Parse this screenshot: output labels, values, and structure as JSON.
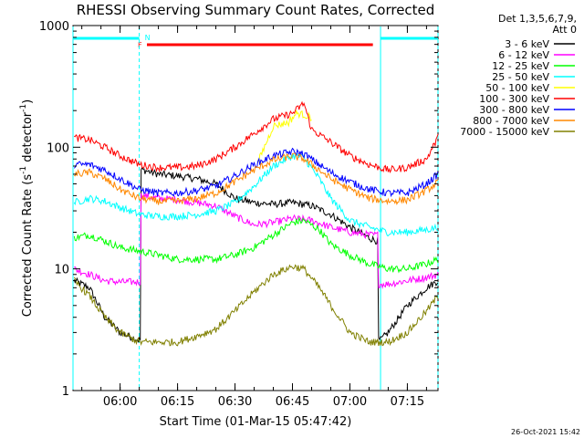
{
  "chart_data": {
    "type": "line",
    "title": "RHESSI Observing Summary Count Rates, Corrected",
    "xlabel": "Start Time (01-Mar-15 05:47:42)",
    "ylabel_main": "Corrected Count Rate (s",
    "ylabel_sup1": "-1",
    "ylabel_mid": " detector",
    "ylabel_sup2": "-1",
    "ylabel_end": ")",
    "timestamp": "26-Oct-2021 15:42",
    "y_scale": "log",
    "ylim": [
      1,
      1000
    ],
    "xlim": [
      "05:47:42",
      "07:23:00"
    ],
    "x_ticks": [
      "06:00",
      "06:15",
      "06:30",
      "06:45",
      "07:00",
      "07:15"
    ],
    "y_ticks": [
      "1",
      "10",
      "100",
      "1000"
    ],
    "legend_header": [
      "Det 1,3,5,6,7,9,",
      "Att 0"
    ],
    "legend_placement": "right",
    "flags": {
      "night_label": "N",
      "flare_label": "F",
      "night_color": "#00ffff",
      "flare_color": "#ff0000",
      "night_spans": [
        [
          "05:47:42",
          "06:05:00"
        ],
        [
          "07:08:00",
          "07:23:00"
        ]
      ],
      "flare_span": [
        "06:07:00",
        "07:06:00"
      ],
      "saa_boundaries": [
        "05:47:42",
        "06:05:00",
        "07:08:00",
        "07:23:00"
      ]
    },
    "series": [
      {
        "name": "3 - 6 keV",
        "color": "#000000",
        "points": [
          [
            "05:48",
            8
          ],
          [
            "05:52",
            7
          ],
          [
            "05:56",
            4
          ],
          [
            "06:00",
            3
          ],
          [
            "06:05",
            2.6
          ],
          [
            "06:06",
            65
          ],
          [
            "06:10",
            60
          ],
          [
            "06:15",
            58
          ],
          [
            "06:20",
            55
          ],
          [
            "06:25",
            50
          ],
          [
            "06:30",
            38
          ],
          [
            "06:35",
            35
          ],
          [
            "06:40",
            34
          ],
          [
            "06:45",
            35
          ],
          [
            "06:50",
            33
          ],
          [
            "06:55",
            28
          ],
          [
            "07:00",
            22
          ],
          [
            "07:05",
            18
          ],
          [
            "07:07",
            17
          ],
          [
            "07:08",
            2.6
          ],
          [
            "07:10",
            3
          ],
          [
            "07:15",
            5
          ],
          [
            "07:20",
            7
          ],
          [
            "07:23",
            8
          ]
        ]
      },
      {
        "name": "6 - 12 keV",
        "color": "#ff00ff",
        "points": [
          [
            "05:48",
            10
          ],
          [
            "05:52",
            9
          ],
          [
            "05:56",
            8
          ],
          [
            "06:00",
            7.8
          ],
          [
            "06:05",
            7.8
          ],
          [
            "06:06",
            40
          ],
          [
            "06:10",
            38
          ],
          [
            "06:15",
            37
          ],
          [
            "06:20",
            35
          ],
          [
            "06:25",
            33
          ],
          [
            "06:30",
            27
          ],
          [
            "06:35",
            23
          ],
          [
            "06:40",
            24
          ],
          [
            "06:45",
            26
          ],
          [
            "06:50",
            25
          ],
          [
            "06:55",
            22
          ],
          [
            "07:00",
            20
          ],
          [
            "07:05",
            19
          ],
          [
            "07:07",
            19
          ],
          [
            "07:08",
            7.5
          ],
          [
            "07:10",
            7.5
          ],
          [
            "07:15",
            8
          ],
          [
            "07:20",
            8.5
          ],
          [
            "07:23",
            9
          ]
        ]
      },
      {
        "name": "12 - 25 keV",
        "color": "#00ff00",
        "points": [
          [
            "05:48",
            18
          ],
          [
            "05:52",
            19
          ],
          [
            "05:56",
            17
          ],
          [
            "06:00",
            15
          ],
          [
            "06:05",
            14
          ],
          [
            "06:10",
            13
          ],
          [
            "06:15",
            12
          ],
          [
            "06:20",
            12
          ],
          [
            "06:25",
            12
          ],
          [
            "06:30",
            13
          ],
          [
            "06:35",
            15
          ],
          [
            "06:40",
            19
          ],
          [
            "06:45",
            24
          ],
          [
            "06:48",
            25
          ],
          [
            "06:52",
            21
          ],
          [
            "06:55",
            16
          ],
          [
            "07:00",
            13
          ],
          [
            "07:05",
            11
          ],
          [
            "07:10",
            10
          ],
          [
            "07:15",
            10
          ],
          [
            "07:20",
            11
          ],
          [
            "07:23",
            12
          ]
        ]
      },
      {
        "name": "25 - 50 keV",
        "color": "#00ffff",
        "points": [
          [
            "05:48",
            35
          ],
          [
            "05:52",
            38
          ],
          [
            "05:56",
            36
          ],
          [
            "06:00",
            32
          ],
          [
            "06:05",
            28
          ],
          [
            "06:10",
            27
          ],
          [
            "06:15",
            27
          ],
          [
            "06:20",
            28
          ],
          [
            "06:25",
            30
          ],
          [
            "06:30",
            35
          ],
          [
            "06:35",
            48
          ],
          [
            "06:40",
            70
          ],
          [
            "06:45",
            85
          ],
          [
            "06:48",
            82
          ],
          [
            "06:52",
            55
          ],
          [
            "06:55",
            38
          ],
          [
            "07:00",
            25
          ],
          [
            "07:05",
            22
          ],
          [
            "07:10",
            20
          ],
          [
            "07:15",
            20
          ],
          [
            "07:20",
            21
          ],
          [
            "07:23",
            22
          ]
        ]
      },
      {
        "name": "50 - 100 keV",
        "color": "#ffff00",
        "points": [
          [
            "06:36",
            75
          ],
          [
            "06:40",
            150
          ],
          [
            "06:44",
            160
          ],
          [
            "06:46",
            190
          ],
          [
            "06:48",
            185
          ],
          [
            "06:50",
            175
          ]
        ]
      },
      {
        "name": "100 - 300 keV",
        "color": "#ff0000",
        "points": [
          [
            "05:48",
            120
          ],
          [
            "05:52",
            115
          ],
          [
            "05:56",
            100
          ],
          [
            "06:00",
            85
          ],
          [
            "06:05",
            72
          ],
          [
            "06:10",
            68
          ],
          [
            "06:15",
            68
          ],
          [
            "06:20",
            70
          ],
          [
            "06:25",
            80
          ],
          [
            "06:30",
            100
          ],
          [
            "06:35",
            130
          ],
          [
            "06:40",
            170
          ],
          [
            "06:45",
            190
          ],
          [
            "06:48",
            230
          ],
          [
            "06:50",
            140
          ],
          [
            "06:55",
            110
          ],
          [
            "07:00",
            85
          ],
          [
            "07:05",
            72
          ],
          [
            "07:10",
            65
          ],
          [
            "07:15",
            68
          ],
          [
            "07:20",
            80
          ],
          [
            "07:23",
            120
          ]
        ]
      },
      {
        "name": "300 - 800 keV",
        "color": "#0000ff",
        "points": [
          [
            "05:48",
            72
          ],
          [
            "05:52",
            72
          ],
          [
            "05:56",
            65
          ],
          [
            "06:00",
            55
          ],
          [
            "06:05",
            45
          ],
          [
            "06:10",
            42
          ],
          [
            "06:15",
            42
          ],
          [
            "06:20",
            44
          ],
          [
            "06:25",
            48
          ],
          [
            "06:30",
            58
          ],
          [
            "06:35",
            72
          ],
          [
            "06:40",
            85
          ],
          [
            "06:45",
            92
          ],
          [
            "06:48",
            88
          ],
          [
            "06:52",
            72
          ],
          [
            "06:55",
            62
          ],
          [
            "07:00",
            52
          ],
          [
            "07:05",
            45
          ],
          [
            "07:10",
            42
          ],
          [
            "07:15",
            42
          ],
          [
            "07:20",
            50
          ],
          [
            "07:23",
            60
          ]
        ]
      },
      {
        "name": "800 - 7000 keV",
        "color": "#ff8800",
        "points": [
          [
            "05:48",
            60
          ],
          [
            "05:52",
            62
          ],
          [
            "05:56",
            55
          ],
          [
            "06:00",
            45
          ],
          [
            "06:05",
            38
          ],
          [
            "06:10",
            36
          ],
          [
            "06:15",
            36
          ],
          [
            "06:20",
            38
          ],
          [
            "06:25",
            42
          ],
          [
            "06:30",
            52
          ],
          [
            "06:35",
            65
          ],
          [
            "06:40",
            78
          ],
          [
            "06:45",
            85
          ],
          [
            "06:48",
            80
          ],
          [
            "06:52",
            65
          ],
          [
            "06:55",
            55
          ],
          [
            "07:00",
            45
          ],
          [
            "07:05",
            38
          ],
          [
            "07:10",
            36
          ],
          [
            "07:15",
            37
          ],
          [
            "07:20",
            44
          ],
          [
            "07:23",
            52
          ]
        ]
      },
      {
        "name": "7000 - 15000 keV",
        "color": "#808000",
        "points": [
          [
            "05:48",
            8
          ],
          [
            "05:52",
            6
          ],
          [
            "05:56",
            4
          ],
          [
            "06:00",
            3
          ],
          [
            "06:05",
            2.5
          ],
          [
            "06:10",
            2.5
          ],
          [
            "06:15",
            2.5
          ],
          [
            "06:20",
            2.8
          ],
          [
            "06:25",
            3.2
          ],
          [
            "06:30",
            4.5
          ],
          [
            "06:35",
            6.5
          ],
          [
            "06:40",
            9
          ],
          [
            "06:45",
            10.5
          ],
          [
            "06:48",
            10
          ],
          [
            "06:52",
            7
          ],
          [
            "06:55",
            5
          ],
          [
            "07:00",
            3
          ],
          [
            "07:05",
            2.5
          ],
          [
            "07:10",
            2.5
          ],
          [
            "07:15",
            3
          ],
          [
            "07:20",
            4.5
          ],
          [
            "07:23",
            6
          ]
        ]
      }
    ]
  }
}
